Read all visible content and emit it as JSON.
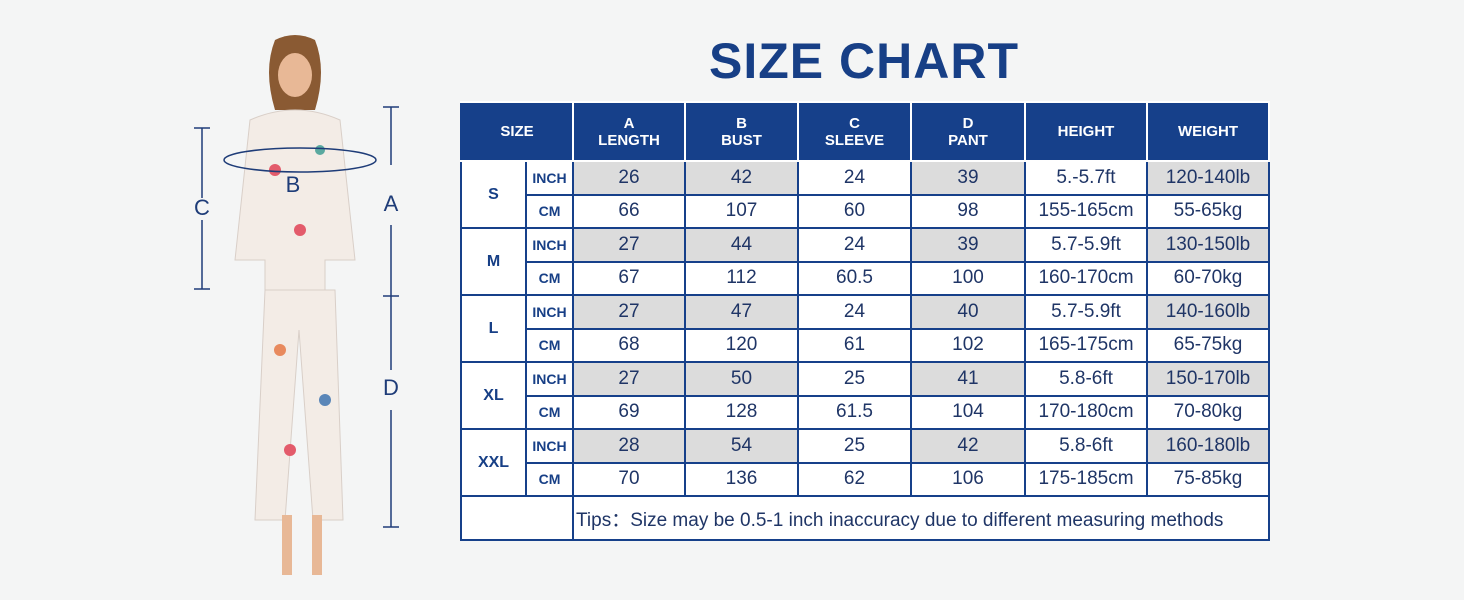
{
  "title": "SIZE CHART",
  "figure_labels": {
    "a": "A",
    "b": "B",
    "c": "C",
    "d": "D"
  },
  "table": {
    "header": [
      [
        "SIZE"
      ],
      [
        "A",
        "LENGTH"
      ],
      [
        "B",
        "BUST"
      ],
      [
        "C",
        "SLEEVE"
      ],
      [
        "D",
        "PANT"
      ],
      [
        "HEIGHT"
      ],
      [
        "WEIGHT"
      ]
    ],
    "groups": [
      {
        "size": "S",
        "rows": [
          {
            "unit": "INCH",
            "cells": [
              "26",
              "42",
              "24",
              "39",
              "5.-5.7ft",
              "120-140lb"
            ]
          },
          {
            "unit": "CM",
            "cells": [
              "66",
              "107",
              "60",
              "98",
              "155-165cm",
              "55-65kg"
            ]
          }
        ]
      },
      {
        "size": "M",
        "rows": [
          {
            "unit": "INCH",
            "cells": [
              "27",
              "44",
              "24",
              "39",
              "5.7-5.9ft",
              "130-150lb"
            ]
          },
          {
            "unit": "CM",
            "cells": [
              "67",
              "112",
              "60.5",
              "100",
              "160-170cm",
              "60-70kg"
            ]
          }
        ]
      },
      {
        "size": "L",
        "rows": [
          {
            "unit": "INCH",
            "cells": [
              "27",
              "47",
              "24",
              "40",
              "5.7-5.9ft",
              "140-160lb"
            ]
          },
          {
            "unit": "CM",
            "cells": [
              "68",
              "120",
              "61",
              "102",
              "165-175cm",
              "65-75kg"
            ]
          }
        ]
      },
      {
        "size": "XL",
        "rows": [
          {
            "unit": "INCH",
            "cells": [
              "27",
              "50",
              "25",
              "41",
              "5.8-6ft",
              "150-170lb"
            ]
          },
          {
            "unit": "CM",
            "cells": [
              "69",
              "128",
              "61.5",
              "104",
              "170-180cm",
              "70-80kg"
            ]
          }
        ]
      },
      {
        "size": "XXL",
        "rows": [
          {
            "unit": "INCH",
            "cells": [
              "28",
              "54",
              "25",
              "42",
              "5.8-6ft",
              "160-180lb"
            ]
          },
          {
            "unit": "CM",
            "cells": [
              "70",
              "136",
              "62",
              "106",
              "175-185cm",
              "75-85kg"
            ]
          }
        ]
      }
    ],
    "tips": "Tips：Size may be 0.5-1 inch inaccuracy due to different measuring methods"
  }
}
